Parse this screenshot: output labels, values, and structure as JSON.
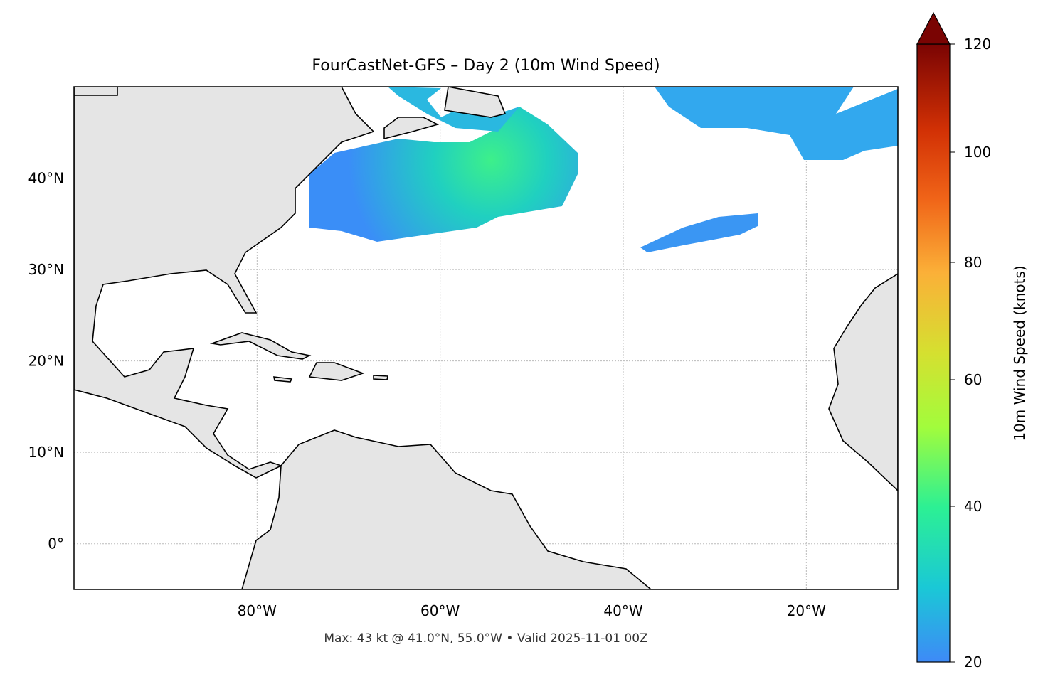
{
  "title": "FourCastNet-GFS – Day 2 (10m Wind Speed)",
  "footer": "Max: 43 kt @ 41.0°N, 55.0°W • Valid 2025-11-01 00Z",
  "map": {
    "extent_lon": [
      -100,
      -10
    ],
    "extent_lat": [
      -5,
      50
    ],
    "lon_ticks": [
      {
        "value": -80,
        "label": "80°W"
      },
      {
        "value": -60,
        "label": "60°W"
      },
      {
        "value": -40,
        "label": "40°W"
      },
      {
        "value": -20,
        "label": "20°W"
      }
    ],
    "lat_ticks": [
      {
        "value": 40,
        "label": "40°N"
      },
      {
        "value": 30,
        "label": "30°N"
      },
      {
        "value": 20,
        "label": "20°N"
      },
      {
        "value": 10,
        "label": "10°N"
      },
      {
        "value": 0,
        "label": "0°"
      }
    ],
    "gridlines": true,
    "land_color": "#e5e5e5",
    "max_point": {
      "lat": 41.0,
      "lon": -55.0,
      "value_kt": 43
    }
  },
  "colorbar": {
    "label": "10m Wind Speed (knots)",
    "range": [
      20,
      120
    ],
    "extend": "max",
    "ticks": [
      20,
      40,
      60,
      80,
      100,
      120
    ],
    "colormap": "turbo",
    "colors": {
      "low": "#3e8af7",
      "mid": "#2cf094",
      "high": "#7a0403"
    }
  }
}
